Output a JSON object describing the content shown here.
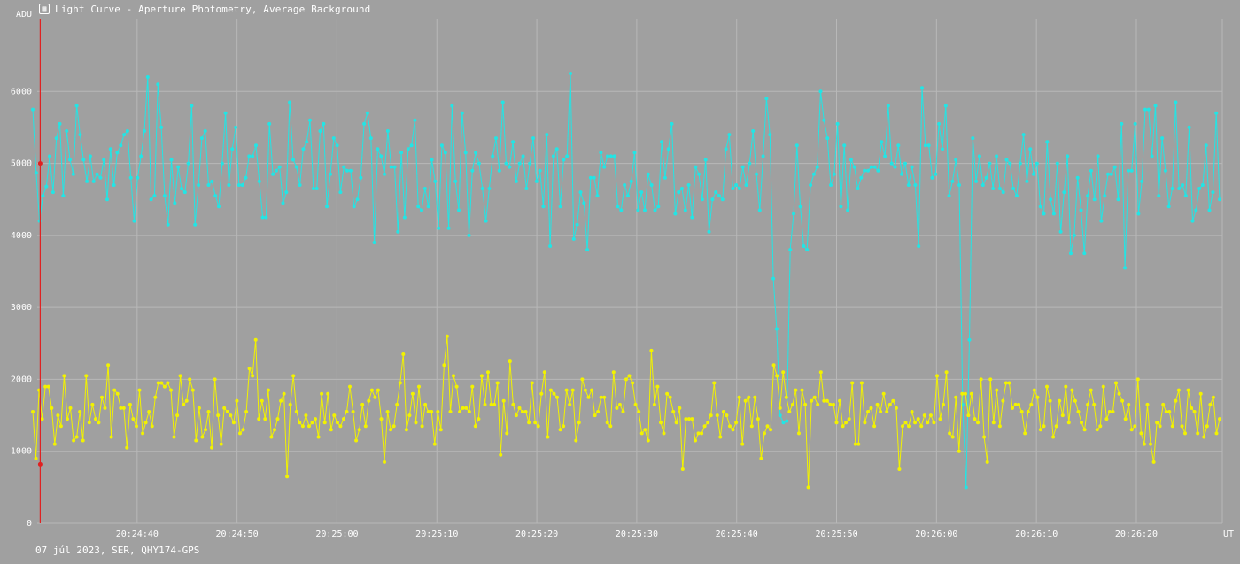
{
  "header": {
    "title": "Light Curve - Aperture Photometry, Average Background",
    "icon": "light-curve-icon"
  },
  "footer": {
    "info": "07 júl 2023, SER, QHY174-GPS"
  },
  "colors": {
    "background": "#a0a0a0",
    "grid": "#b8b8b8",
    "axis_text": "#ffffff",
    "cursor": "#e02020",
    "series_target": "#22e5e5",
    "series_comparison": "#f2f200"
  },
  "chart_data": {
    "type": "line",
    "title": "Light Curve - Aperture Photometry, Average Background",
    "ylabel": "ADU",
    "xlabel": "UT",
    "ylim": [
      0,
      7000
    ],
    "y_ticks": [
      0,
      1000,
      2000,
      3000,
      4000,
      5000,
      6000
    ],
    "x_start": "20:24:30",
    "x_end": "20:26:28.6",
    "x_ticks": [
      "20:24:40",
      "20:24:50",
      "20:25:00",
      "20:25:10",
      "20:25:20",
      "20:25:30",
      "20:25:40",
      "20:25:50",
      "20:26:00",
      "20:26:10",
      "20:26:20"
    ],
    "grid": true,
    "legend": "none",
    "cursor": {
      "time": "20:24:30.3",
      "values": [
        5000,
        820
      ]
    },
    "series": [
      {
        "color": "#22e5e5",
        "values": [
          5750,
          4870,
          4200,
          4550,
          4680,
          5100,
          4600,
          5350,
          5550,
          4550,
          5450,
          5050,
          4850,
          5800,
          5400,
          5050,
          4750,
          5100,
          4750,
          4850,
          4800,
          5050,
          4500,
          5200,
          4700,
          5150,
          5250,
          5400,
          5450,
          4800,
          4200,
          4800,
          5100,
          5450,
          6200,
          4500,
          4550,
          6100,
          5500,
          4550,
          4150,
          5050,
          4450,
          4950,
          4650,
          4600,
          5000,
          5800,
          4150,
          4700,
          5350,
          5450,
          4700,
          4750,
          4550,
          4400,
          5000,
          5700,
          4700,
          5200,
          5500,
          4700,
          4700,
          4800,
          5100,
          5100,
          5250,
          4750,
          4250,
          4250,
          5550,
          4850,
          4900,
          4950,
          4450,
          4600,
          5850,
          5050,
          4950,
          4700,
          5200,
          5300,
          5600,
          4650,
          4650,
          5450,
          5550,
          4400,
          4850,
          5350,
          5250,
          4600,
          4950,
          4900,
          4900,
          4400,
          4500,
          4800,
          5550,
          5700,
          5350,
          3900,
          5200,
          5100,
          4850,
          5450,
          4950,
          4950,
          4050,
          5150,
          4250,
          5200,
          5250,
          5600,
          4400,
          4350,
          4650,
          4400,
          5050,
          4750,
          4100,
          5250,
          5150,
          4100,
          5800,
          4750,
          4350,
          5700,
          5150,
          4000,
          4900,
          5150,
          5000,
          4650,
          4200,
          4650,
          5100,
          5350,
          4900,
          5850,
          5000,
          4950,
          5300,
          4750,
          5000,
          5100,
          4650,
          5000,
          5350,
          4750,
          4900,
          4400,
          5400,
          3850,
          5100,
          5200,
          4400,
          5050,
          5100,
          6250,
          3950,
          4150,
          4600,
          4450,
          3800,
          4800,
          4800,
          4550,
          5150,
          4950,
          5100,
          5100,
          5100,
          4400,
          4350,
          4700,
          4550,
          4750,
          5150,
          4350,
          4600,
          4350,
          4850,
          4700,
          4350,
          4400,
          5300,
          4800,
          5200,
          5550,
          4300,
          4600,
          4650,
          4350,
          4700,
          4250,
          4950,
          4850,
          4500,
          5050,
          4050,
          4500,
          4600,
          4550,
          4500,
          5200,
          5400,
          4650,
          4700,
          4650,
          4950,
          4700,
          5000,
          5450,
          4850,
          4350,
          5100,
          5900,
          5400,
          3400,
          2700,
          1500,
          1400,
          1420,
          3800,
          4300,
          5250,
          4400,
          3850,
          3800,
          4700,
          4850,
          4950,
          6000,
          5600,
          5350,
          4700,
          4850,
          5550,
          4400,
          5250,
          4350,
          5050,
          4950,
          4650,
          4800,
          4900,
          4900,
          4950,
          4950,
          4900,
          5300,
          5100,
          5800,
          5000,
          4950,
          5250,
          4850,
          5000,
          4700,
          4950,
          4700,
          3850,
          6050,
          5250,
          5250,
          4800,
          4850,
          5550,
          5200,
          5800,
          4550,
          4750,
          5050,
          4700,
          1650,
          500,
          2550,
          5350,
          4750,
          5100,
          4700,
          4800,
          5000,
          4650,
          5100,
          4650,
          4600,
          5050,
          5000,
          4650,
          4550,
          5000,
          5400,
          4750,
          5200,
          4850,
          5000,
          4400,
          4300,
          5300,
          4500,
          4300,
          5000,
          4050,
          4600,
          5100,
          3750,
          4000,
          4800,
          4350,
          3750,
          4550,
          4900,
          4500,
          5100,
          4200,
          4550,
          4850,
          4850,
          4950,
          4500,
          5550,
          3550,
          4900,
          4900,
          5550,
          4300,
          4750,
          5750,
          5750,
          5100,
          5800,
          4550,
          5350,
          4900,
          4400,
          4650,
          5850,
          4650,
          4700,
          4550,
          5500,
          4200,
          4350,
          4650,
          4700,
          5250,
          4350,
          4600,
          5700,
          4500
        ]
      },
      {
        "color": "#f2f200",
        "values": [
          1550,
          900,
          1850,
          1450,
          1900,
          1900,
          1600,
          1100,
          1500,
          1350,
          2050,
          1450,
          1600,
          1150,
          1200,
          1550,
          1150,
          2050,
          1400,
          1650,
          1450,
          1400,
          1750,
          1600,
          2200,
          1200,
          1850,
          1800,
          1600,
          1600,
          1050,
          1650,
          1450,
          1350,
          1850,
          1250,
          1400,
          1550,
          1350,
          1750,
          1950,
          1950,
          1900,
          1950,
          1850,
          1200,
          1500,
          2050,
          1650,
          1700,
          2000,
          1850,
          1150,
          1600,
          1200,
          1300,
          1550,
          1050,
          2000,
          1500,
          1100,
          1600,
          1550,
          1500,
          1400,
          1700,
          1250,
          1300,
          1550,
          2150,
          2050,
          2550,
          1450,
          1700,
          1450,
          1850,
          1200,
          1300,
          1450,
          1700,
          1800,
          650,
          1650,
          2050,
          1550,
          1400,
          1350,
          1500,
          1350,
          1400,
          1450,
          1200,
          1800,
          1400,
          1800,
          1300,
          1500,
          1400,
          1350,
          1450,
          1550,
          1900,
          1550,
          1150,
          1300,
          1650,
          1350,
          1700,
          1850,
          1750,
          1850,
          1450,
          850,
          1550,
          1300,
          1350,
          1650,
          1950,
          2350,
          1300,
          1500,
          1800,
          1400,
          1900,
          1350,
          1650,
          1550,
          1550,
          1100,
          1550,
          1300,
          2200,
          2600,
          1550,
          2050,
          1900,
          1550,
          1600,
          1600,
          1550,
          1900,
          1350,
          1450,
          2050,
          1650,
          2100,
          1650,
          1650,
          1950,
          950,
          1700,
          1250,
          2250,
          1650,
          1500,
          1600,
          1550,
          1550,
          1400,
          1950,
          1400,
          1350,
          1800,
          2100,
          1200,
          1850,
          1800,
          1750,
          1300,
          1350,
          1850,
          1650,
          1850,
          1150,
          1400,
          2000,
          1850,
          1750,
          1850,
          1500,
          1550,
          1750,
          1750,
          1400,
          1350,
          2100,
          1600,
          1650,
          1550,
          2000,
          2050,
          1950,
          1650,
          1550,
          1250,
          1300,
          1150,
          2400,
          1650,
          1900,
          1400,
          1250,
          1800,
          1750,
          1550,
          1400,
          1600,
          750,
          1450,
          1450,
          1450,
          1150,
          1250,
          1250,
          1350,
          1400,
          1500,
          1950,
          1500,
          1200,
          1550,
          1500,
          1350,
          1300,
          1400,
          1750,
          1100,
          1700,
          1750,
          1350,
          1750,
          1450,
          900,
          1250,
          1350,
          1300,
          2200,
          2050,
          1600,
          2100,
          1750,
          1550,
          1650,
          1850,
          1250,
          1850,
          1650,
          500,
          1700,
          1750,
          1650,
          2100,
          1700,
          1700,
          1650,
          1650,
          1400,
          1700,
          1350,
          1400,
          1450,
          1950,
          1100,
          1100,
          1950,
          1400,
          1550,
          1600,
          1350,
          1650,
          1550,
          1800,
          1550,
          1650,
          1700,
          1600,
          750,
          1350,
          1400,
          1350,
          1550,
          1400,
          1450,
          1350,
          1500,
          1400,
          1500,
          1400,
          2050,
          1450,
          1650,
          2100,
          1250,
          1200,
          1750,
          1000,
          1800,
          1800,
          1500,
          1800,
          1450,
          1400,
          2000,
          1200,
          850,
          2000,
          1400,
          1850,
          1350,
          1700,
          1950,
          1950,
          1600,
          1650,
          1650,
          1550,
          1250,
          1550,
          1650,
          1850,
          1750,
          1300,
          1350,
          1900,
          1700,
          1200,
          1350,
          1700,
          1500,
          1900,
          1400,
          1850,
          1700,
          1550,
          1400,
          1300,
          1650,
          1850,
          1650,
          1300,
          1350,
          1900,
          1450,
          1550,
          1550,
          1950,
          1800,
          1700,
          1450,
          1650,
          1300,
          1350,
          2000,
          1250,
          1100,
          1650,
          1100,
          850,
          1400,
          1350,
          1650,
          1550,
          1550,
          1350,
          1700,
          1850,
          1350,
          1250,
          1850,
          1600,
          1550,
          1250,
          1800,
          1200,
          1350,
          1650,
          1750,
          1250,
          1450
        ]
      }
    ]
  }
}
